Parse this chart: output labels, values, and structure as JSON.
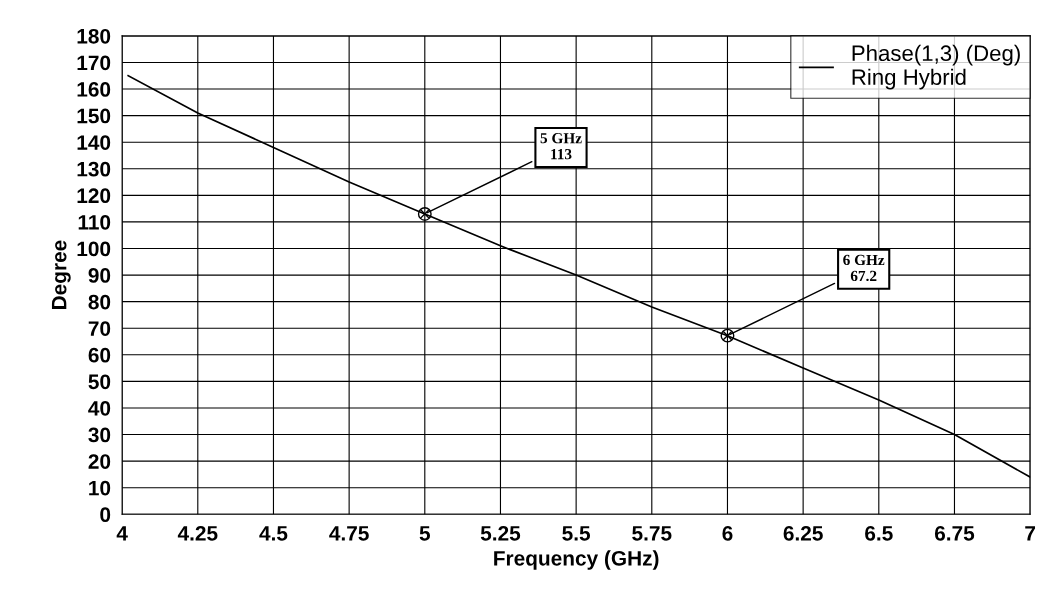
{
  "chart_data": {
    "type": "line",
    "xlabel": "Frequency (GHz)",
    "ylabel": "Degree",
    "series": [
      {
        "name": "Phase(1,3) (Deg)\nRing Hybrid",
        "color": "#000000",
        "x": [
          4.02,
          4.25,
          4.5,
          4.75,
          5.0,
          5.25,
          5.5,
          5.75,
          6.0,
          6.25,
          6.5,
          6.75,
          7.0
        ],
        "values": [
          165,
          151,
          138,
          125,
          113,
          101,
          90,
          78,
          67.2,
          55,
          43,
          30,
          14
        ]
      }
    ],
    "annotations": [
      {
        "text": "5 GHz\n113",
        "x": 5,
        "y": 113
      },
      {
        "text": "6 GHz\n67.2",
        "x": 6,
        "y": 67.2
      }
    ],
    "xlim": [
      4,
      7
    ],
    "xticks": [
      4,
      4.25,
      4.5,
      4.75,
      5,
      5.25,
      5.5,
      5.75,
      6,
      6.25,
      6.5,
      6.75,
      7
    ],
    "ylim": [
      0,
      180
    ],
    "yticks": [
      0,
      10,
      20,
      30,
      40,
      50,
      60,
      70,
      80,
      90,
      100,
      110,
      120,
      130,
      140,
      150,
      160,
      170,
      180
    ],
    "grid": true,
    "legend": "top right",
    "line_style": "solid"
  }
}
